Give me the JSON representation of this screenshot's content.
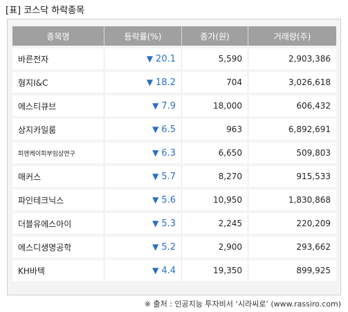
{
  "title": "[표] 코스닥 하락종목",
  "headers": [
    "종목명",
    "등락률(%)",
    "종가(원)",
    "거래량(주)"
  ],
  "rows": [
    {
      "name": "바른전자",
      "rate": "20.1",
      "price": "5,590",
      "volume": "2,903,386"
    },
    {
      "name": "형지I&C",
      "rate": "18.2",
      "price": "704",
      "volume": "3,026,618"
    },
    {
      "name": "에스티큐브",
      "rate": "7.9",
      "price": "18,000",
      "volume": "606,432"
    },
    {
      "name": "상지카일룸",
      "rate": "6.5",
      "price": "963",
      "volume": "6,892,691"
    },
    {
      "name": "피엔케이피부임상연구",
      "rate": "6.3",
      "price": "6,650",
      "volume": "509,803"
    },
    {
      "name": "매커스",
      "rate": "5.7",
      "price": "8,270",
      "volume": "915,533"
    },
    {
      "name": "파인테크닉스",
      "rate": "5.6",
      "price": "10,950",
      "volume": "1,830,868"
    },
    {
      "name": "더블유에스아이",
      "rate": "5.3",
      "price": "2,245",
      "volume": "220,209"
    },
    {
      "name": "에스디생명공학",
      "rate": "5.2",
      "price": "2,900",
      "volume": "293,662"
    },
    {
      "name": "KH바텍",
      "rate": "4.4",
      "price": "19,350",
      "volume": "899,925"
    }
  ],
  "down_symbol": "▼",
  "footer": "※ 출처 : 인공지능 투자비서 ‘시라씨로’ (www.rassiro.com)"
}
